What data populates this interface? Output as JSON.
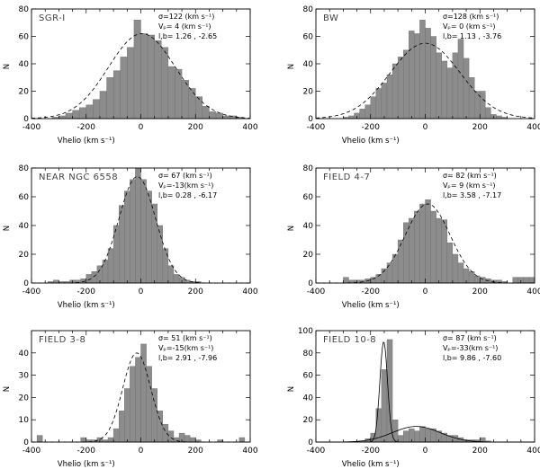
{
  "chart_data": [
    {
      "type": "bar",
      "panel_label": "SGR-I",
      "stats": [
        "σ=122 (km s⁻¹)",
        "Vₚ=  4 (km s⁻¹)",
        "l,b=  1.26 , -2.65"
      ],
      "xlabel": "Vhelio (km s⁻¹)",
      "ylabel": "N",
      "xlim": [
        -400,
        400
      ],
      "ylim": [
        0,
        80
      ],
      "xticks": [
        -400,
        -200,
        0,
        200,
        400
      ],
      "yticks": [
        0,
        20,
        40,
        60,
        80
      ],
      "bin_width": 25,
      "bins_start": [
        -350,
        -325,
        -300,
        -275,
        -250,
        -225,
        -200,
        -175,
        -150,
        -125,
        -100,
        -75,
        -50,
        -25,
        0,
        25,
        50,
        75,
        100,
        125,
        150,
        175,
        200,
        225,
        250,
        275,
        300,
        325,
        350,
        375
      ],
      "values": [
        0,
        1,
        2,
        4,
        6,
        8,
        10,
        14,
        20,
        30,
        35,
        45,
        52,
        72,
        62,
        61,
        57,
        52,
        38,
        36,
        28,
        22,
        16,
        9,
        5,
        4,
        2,
        2,
        1,
        0
      ],
      "fit": {
        "type": "gaussian",
        "mu": 4,
        "sigma": 122,
        "amp": 62
      },
      "grid": false
    },
    {
      "type": "bar",
      "panel_label": "BW",
      "stats": [
        "σ=128 (km s⁻¹)",
        "Vₚ=  0 (km s⁻¹)",
        "l,b=  1.13 , -3.76"
      ],
      "xlabel": "Vhelio (km s⁻¹)",
      "ylabel": "N",
      "xlim": [
        -400,
        400
      ],
      "ylim": [
        0,
        80
      ],
      "xticks": [
        -400,
        -200,
        0,
        200,
        400
      ],
      "yticks": [
        0,
        20,
        40,
        60,
        80
      ],
      "bin_width": 20,
      "bins_start": [
        -360,
        -340,
        -320,
        -300,
        -280,
        -260,
        -240,
        -220,
        -200,
        -180,
        -160,
        -140,
        -120,
        -100,
        -80,
        -60,
        -40,
        -20,
        0,
        20,
        40,
        60,
        80,
        100,
        120,
        140,
        160,
        180,
        200,
        220,
        240,
        260,
        280,
        300,
        320,
        340
      ],
      "values": [
        0,
        0,
        0,
        1,
        2,
        4,
        7,
        10,
        16,
        22,
        26,
        32,
        40,
        45,
        50,
        64,
        62,
        72,
        66,
        60,
        48,
        42,
        37,
        48,
        58,
        44,
        30,
        20,
        20,
        8,
        3,
        2,
        1,
        0,
        0,
        0
      ],
      "fit": {
        "type": "gaussian",
        "mu": 0,
        "sigma": 128,
        "amp": 55
      },
      "grid": false
    },
    {
      "type": "bar",
      "panel_label": "NEAR NGC 6558",
      "stats": [
        "σ= 67 (km s⁻¹)",
        "Vₚ=-13(km s⁻¹)",
        "l,b=  0.28 , -6.17"
      ],
      "xlabel": "Vhelio (km s⁻¹)",
      "ylabel": "N",
      "xlim": [
        -400,
        400
      ],
      "ylim": [
        0,
        80
      ],
      "xticks": [
        -400,
        -200,
        0,
        200,
        400
      ],
      "yticks": [
        0,
        20,
        40,
        60,
        80
      ],
      "bin_width": 20,
      "bins_start": [
        -340,
        -320,
        -300,
        -280,
        -260,
        -240,
        -220,
        -200,
        -180,
        -160,
        -140,
        -120,
        -100,
        -80,
        -60,
        -40,
        -20,
        0,
        20,
        40,
        60,
        80,
        100,
        120,
        140,
        160,
        180,
        200,
        220
      ],
      "values": [
        1,
        2,
        1,
        1,
        2,
        2,
        3,
        6,
        8,
        12,
        16,
        24,
        40,
        54,
        64,
        72,
        80,
        72,
        64,
        55,
        40,
        24,
        12,
        6,
        4,
        2,
        1,
        1,
        0
      ],
      "fit": {
        "type": "gaussian",
        "mu": -13,
        "sigma": 67,
        "amp": 74
      },
      "grid": false
    },
    {
      "type": "bar",
      "panel_label": "FIELD 4-7",
      "stats": [
        "σ= 82 (km s⁻¹)",
        "Vₚ=  9 (km s⁻¹)",
        "l,b=  3.58 , -7.17"
      ],
      "xlabel": "Vhelio (km s⁻¹)",
      "ylabel": "N",
      "xlim": [
        -400,
        400
      ],
      "ylim": [
        0,
        80
      ],
      "xticks": [
        -400,
        -200,
        0,
        200,
        400
      ],
      "yticks": [
        0,
        20,
        40,
        60,
        80
      ],
      "bin_width": 20,
      "bins_start": [
        -300,
        -280,
        -260,
        -240,
        -220,
        -200,
        -180,
        -160,
        -140,
        -120,
        -100,
        -80,
        -60,
        -40,
        -20,
        0,
        20,
        40,
        60,
        80,
        100,
        120,
        140,
        160,
        180,
        200,
        220,
        240,
        260,
        280,
        300,
        320,
        340,
        360,
        380
      ],
      "values": [
        4,
        2,
        2,
        2,
        3,
        4,
        6,
        10,
        14,
        20,
        30,
        42,
        45,
        50,
        55,
        58,
        50,
        45,
        44,
        28,
        20,
        14,
        10,
        8,
        5,
        4,
        3,
        2,
        2,
        1,
        0,
        4,
        4,
        4,
        4
      ],
      "fit": {
        "type": "gaussian",
        "mu": 9,
        "sigma": 82,
        "amp": 55
      },
      "grid": false
    },
    {
      "type": "bar",
      "panel_label": "FIELD 3-8",
      "stats": [
        "σ= 51 (km s⁻¹)",
        "Vₚ=-15(km s⁻¹)",
        "l,b=  2.91 , -7.96"
      ],
      "xlabel": "Vhelio (km s⁻¹)",
      "ylabel": "N",
      "xlim": [
        -400,
        400
      ],
      "ylim": [
        0,
        50
      ],
      "xticks": [
        -400,
        -200,
        0,
        200,
        400
      ],
      "yticks": [
        0,
        10,
        20,
        30,
        40
      ],
      "bin_width": 20,
      "bins_start": [
        -380,
        -360,
        -340,
        -320,
        -300,
        -280,
        -260,
        -240,
        -220,
        -200,
        -180,
        -160,
        -140,
        -120,
        -100,
        -80,
        -60,
        -40,
        -20,
        0,
        20,
        40,
        60,
        80,
        100,
        120,
        140,
        160,
        180,
        200,
        220,
        240,
        260,
        280,
        300,
        320,
        340,
        360,
        380
      ],
      "values": [
        3,
        0,
        0,
        0,
        0,
        0,
        0,
        0,
        2,
        1,
        1,
        2,
        1,
        2,
        6,
        14,
        24,
        34,
        38,
        44,
        34,
        24,
        14,
        8,
        5,
        2,
        4,
        3,
        2,
        1,
        0,
        0,
        0,
        1,
        0,
        0,
        0,
        2,
        0
      ],
      "fit": {
        "type": "gaussian",
        "mu": -15,
        "sigma": 51,
        "amp": 40
      },
      "grid": false
    },
    {
      "type": "bar",
      "panel_label": "FIELD 10-8",
      "stats": [
        "σ= 87 (km s⁻¹)",
        "Vₚ=-33(km s⁻¹)",
        "l,b=  9.86 , -7.60"
      ],
      "xlabel": "Vhelio (km s⁻¹)",
      "ylabel": "N",
      "xlim": [
        -400,
        400
      ],
      "ylim": [
        0,
        100
      ],
      "xticks": [
        -400,
        -200,
        0,
        200,
        400
      ],
      "yticks": [
        0,
        20,
        40,
        60,
        80,
        100
      ],
      "bin_width": 20,
      "bins_start": [
        -240,
        -220,
        -200,
        -180,
        -160,
        -140,
        -120,
        -100,
        -80,
        -60,
        -40,
        -20,
        0,
        20,
        40,
        60,
        80,
        100,
        120,
        140,
        160,
        180,
        200,
        220
      ],
      "values": [
        1,
        3,
        8,
        30,
        65,
        92,
        20,
        6,
        10,
        12,
        10,
        14,
        12,
        12,
        10,
        8,
        6,
        6,
        4,
        2,
        2,
        2,
        4,
        1
      ],
      "fit": {
        "type": "gaussian",
        "mu": -33,
        "sigma": 87,
        "amp": 14
      },
      "fit2": {
        "type": "gaussian",
        "mu": -152,
        "sigma": 14,
        "amp": 90
      },
      "grid": false
    }
  ]
}
